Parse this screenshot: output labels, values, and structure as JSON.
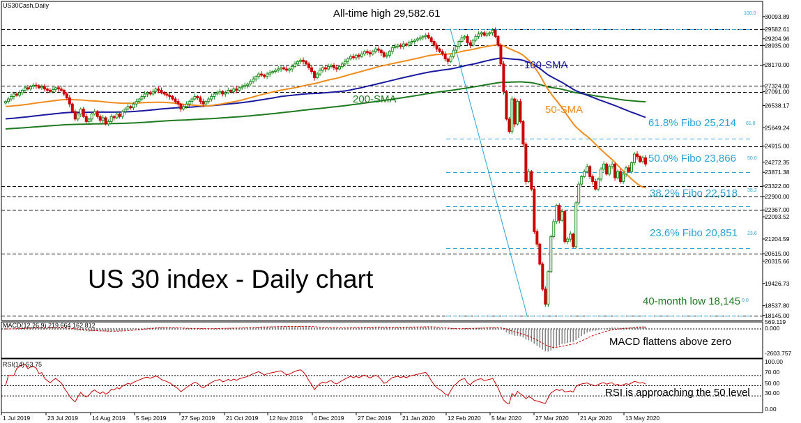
{
  "colors": {
    "candle_up": "#1a8c1a",
    "candle_down": "#cc0000",
    "sma50": "#f08c1e",
    "sma100": "#1a1aa0",
    "sma200": "#1e7a1e",
    "fibo": "#29a3d6",
    "trendline": "#29a3d6",
    "macd_hist": "#808080",
    "macd_signal": "#cc0000",
    "rsi_line": "#cc0000",
    "grid": "#000000"
  },
  "header": {
    "symbol_label": "US30Cash,Daily",
    "macd_label": "MACD(12,26,9) 219.664 162.812",
    "rsi_label": "RSI(14) 53.75"
  },
  "annotations": {
    "chart_title": "US 30 index - Daily chart",
    "ath": "All-time high 29,582.61",
    "sma100": "100-SMA",
    "sma200": "200-SMA",
    "sma50": "50-SMA",
    "fib618": "61.8% Fibo 25,214",
    "fib500": "50.0% Fibo 23,866",
    "fib382": "38.2% Fibo 22,518",
    "fib236": "23.6% Fibo 20,851",
    "low": "40-month low 18,145",
    "macd_note": "MACD flattens above zero",
    "rsi_note": "RSI is approaching the 50 level",
    "fib_tag_100": "100.0",
    "fib_tag_618": "61.8",
    "fib_tag_500": "50.0",
    "fib_tag_382": "38.2",
    "fib_tag_236": "23.6",
    "fib_tag_0": "0.0"
  },
  "chart_data": {
    "type": "candlestick",
    "y_axis_labels": [
      "30093.89",
      "29582.61",
      "29204.96",
      "28935.00",
      "28170.00",
      "27324.00",
      "27091.00",
      "26538.17",
      "25649.24",
      "24915.00",
      "24272.35",
      "23871.38",
      "23322.00",
      "22900.00",
      "22367.00",
      "22093.52",
      "21204.59",
      "20615.00",
      "20315.66",
      "19426.73",
      "18537.80",
      "18145.00"
    ],
    "y_range": [
      18000,
      30200
    ],
    "horizontal_levels": [
      29582.61,
      28935,
      28170,
      27324,
      27091,
      24915,
      23322,
      22900,
      22367,
      20615,
      18145
    ],
    "fibonacci": [
      {
        "level": "100.0",
        "value": 29582.61
      },
      {
        "level": "61.8",
        "value": 25214
      },
      {
        "level": "50.0",
        "value": 23866
      },
      {
        "level": "38.2",
        "value": 22518
      },
      {
        "level": "23.6",
        "value": 20851
      },
      {
        "level": "0.0",
        "value": 18145
      }
    ],
    "x_labels": [
      "1 Jul 2019",
      "23 Jul 2019",
      "14 Aug 2019",
      "5 Sep 2019",
      "27 Sep 2019",
      "21 Oct 2019",
      "12 Nov 2019",
      "4 Dec 2019",
      "27 Dec 2019",
      "21 Jan 2020",
      "12 Feb 2020",
      "5 Mar 2020",
      "27 Mar 2020",
      "21 Apr 2020",
      "13 May 2020"
    ],
    "closes": [
      26700,
      26800,
      26900,
      27000,
      26950,
      27050,
      27150,
      27250,
      27200,
      27300,
      27350,
      27330,
      27250,
      27300,
      27200,
      27150,
      27100,
      27180,
      27250,
      27200,
      27150,
      27000,
      26850,
      26600,
      26300,
      26000,
      26200,
      26400,
      26100,
      25900,
      26000,
      26200,
      26300,
      26100,
      25950,
      26050,
      25800,
      25900,
      26100,
      26050,
      26200,
      26100,
      26300,
      26400,
      26500,
      26450,
      26600,
      26700,
      26800,
      26900,
      27000,
      27050,
      27000,
      27100,
      27200,
      27150,
      27050,
      27000,
      26950,
      26900,
      26800,
      26700,
      26600,
      26400,
      26500,
      26600,
      26700,
      26800,
      26900,
      26850,
      26700,
      26600,
      26700,
      26800,
      26900,
      27000,
      27050,
      27100,
      27000,
      27050,
      27150,
      27100,
      27200,
      27150,
      27250,
      27300,
      27350,
      27400,
      27500,
      27600,
      27700,
      27800,
      27750,
      27700,
      27800,
      27850,
      27900,
      27950,
      28000,
      28050,
      28000,
      27950,
      28000,
      28100,
      28200,
      28300,
      28350,
      28300,
      28200,
      28050,
      27900,
      27650,
      27800,
      27950,
      28050,
      28000,
      28100,
      28150,
      28050,
      28000,
      28100,
      28200,
      28300,
      28400,
      28500,
      28450,
      28550,
      28500,
      28600,
      28700,
      28650,
      28600,
      28700,
      28800,
      28750,
      28650,
      28500,
      28550,
      28700,
      28850,
      28900,
      28950,
      28900,
      29000,
      28950,
      29050,
      29100,
      29150,
      29200,
      29250,
      29300,
      29350,
      29250,
      29100,
      28950,
      28800,
      28700,
      28600,
      28400,
      28300,
      28500,
      28750,
      28900,
      29100,
      29250,
      29300,
      29050,
      28950,
      29150,
      29300,
      29400,
      29450,
      29350,
      29400,
      29450,
      29550,
      29300,
      28950,
      28200,
      27100,
      26000,
      25500,
      26800,
      25800,
      26700,
      25900,
      25000,
      23500,
      23900,
      23200,
      21500,
      21000,
      20200,
      19200,
      18600,
      19900,
      21300,
      21900,
      22550,
      21950,
      22300,
      21100,
      21200,
      21400,
      20900,
      22650,
      23400,
      23700,
      23900,
      24100,
      23700,
      23500,
      23200,
      23600,
      24000,
      24200,
      23800,
      24100,
      24200,
      23650,
      23900,
      23500,
      23800,
      24050,
      23900,
      24250,
      24600,
      24500,
      24300,
      24450,
      24200
    ]
  }
}
